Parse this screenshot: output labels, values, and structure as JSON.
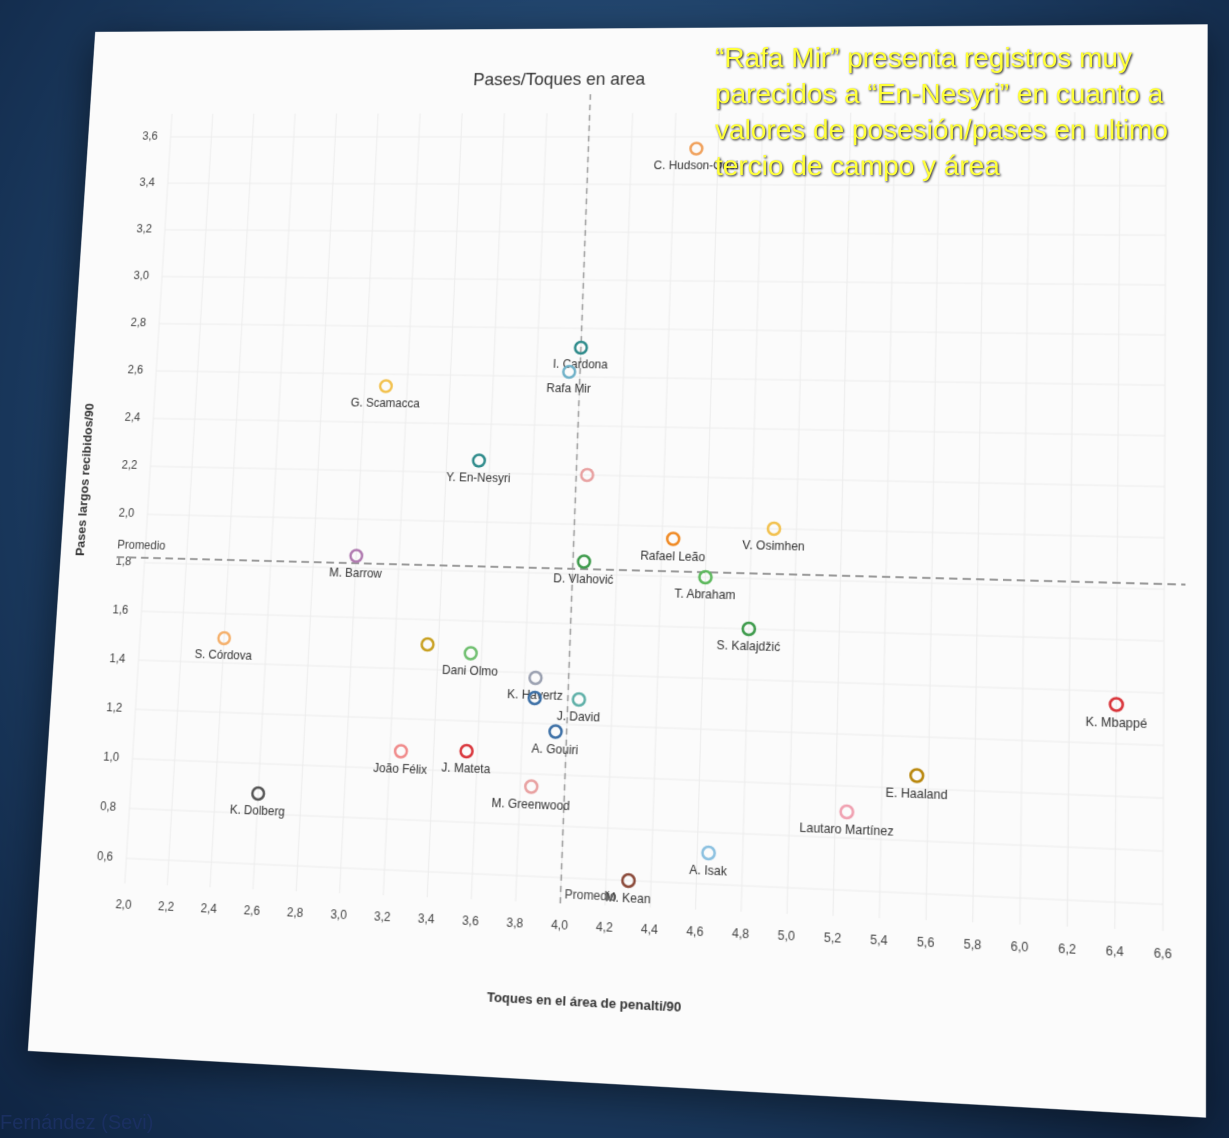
{
  "chart_data": {
    "type": "scatter",
    "title": "Pases/Toques en area",
    "x_label": "Toques en el área de penalti/90",
    "y_label": "Pases largos recibidos/90",
    "annotation": "“Rafa Mir” presenta registros muy parecidos a “En-Nesyri” en cuanto a valores de posesión/pases en ultimo tercio de campo  y área",
    "footer": "Fernández (Sevi)",
    "average_label": "Promedio",
    "x_average": 4.0,
    "y_average": 1.82,
    "labels": [
      "C. Hudson-Odoi",
      "I. Cardona",
      "Rafa Mir",
      "G. Scamacca",
      "Y. En-Nesyri",
      null,
      "Rafael Leão",
      "V. Osimhen",
      "M. Barrow",
      "D. Vlahović",
      "T. Abraham",
      "S. Kalajdžić",
      "S. Córdova",
      null,
      "Dani Olmo",
      "K. Havertz",
      null,
      "J. David",
      "A. Gouiri",
      "João Félix",
      "J. Mateta",
      "M. Greenwood",
      "K. Dolberg",
      "M. Kean",
      "A. Isak",
      "Lautaro Martínez",
      "E. Haaland",
      "K. Mbappé"
    ],
    "x": [
      4.5,
      4.0,
      3.95,
      3.1,
      3.55,
      4.05,
      4.45,
      4.9,
      3.0,
      4.05,
      4.6,
      4.8,
      2.4,
      3.35,
      3.55,
      3.85,
      3.85,
      4.05,
      3.95,
      3.25,
      3.55,
      3.85,
      2.6,
      4.3,
      4.65,
      5.25,
      5.55,
      6.4
    ],
    "values": [
      3.55,
      2.72,
      2.62,
      2.55,
      2.25,
      2.2,
      1.95,
      2.0,
      1.85,
      1.85,
      1.8,
      1.6,
      1.5,
      1.5,
      1.47,
      1.38,
      1.3,
      1.3,
      1.17,
      1.07,
      1.08,
      0.95,
      0.88,
      0.6,
      0.72,
      0.9,
      1.05,
      1.35
    ],
    "colors": [
      "#f0a05a",
      "#2e8b8b",
      "#6fb1c8",
      "#f2c14e",
      "#2e8b8b",
      "#e8a0a0",
      "#f08a24",
      "#f2c14e",
      "#b07ab0",
      "#3c9a4a",
      "#5cb85c",
      "#3c9a4a",
      "#f5b06b",
      "#c8a020",
      "#6fbf6f",
      "#9aa0b0",
      "#3a6ea5",
      "#5fb0a8",
      "#3a6ea5",
      "#f08a8a",
      "#d9343a",
      "#e8a0a0",
      "#555555",
      "#8b4a3a",
      "#8ac0e0",
      "#f0a0b0",
      "#b8860b",
      "#d9343a"
    ],
    "xlim": [
      2.0,
      6.6
    ],
    "ylim": [
      0.5,
      3.7
    ],
    "xticks": [
      {
        "value": 2.0,
        "label": "2,0"
      },
      {
        "value": 2.2,
        "label": "2,2"
      },
      {
        "value": 2.4,
        "label": "2,4"
      },
      {
        "value": 2.6,
        "label": "2,6"
      },
      {
        "value": 2.8,
        "label": "2,8"
      },
      {
        "value": 3.0,
        "label": "3,0"
      },
      {
        "value": 3.2,
        "label": "3,2"
      },
      {
        "value": 3.4,
        "label": "3,4"
      },
      {
        "value": 3.6,
        "label": "3,6"
      },
      {
        "value": 3.8,
        "label": "3,8"
      },
      {
        "value": 4.0,
        "label": "4,0"
      },
      {
        "value": 4.2,
        "label": "4,2"
      },
      {
        "value": 4.4,
        "label": "4,4"
      },
      {
        "value": 4.6,
        "label": "4,6"
      },
      {
        "value": 4.8,
        "label": "4,8"
      },
      {
        "value": 5.0,
        "label": "5,0"
      },
      {
        "value": 5.2,
        "label": "5,2"
      },
      {
        "value": 5.4,
        "label": "5,4"
      },
      {
        "value": 5.6,
        "label": "5,6"
      },
      {
        "value": 5.8,
        "label": "5,8"
      },
      {
        "value": 6.0,
        "label": "6,0"
      },
      {
        "value": 6.2,
        "label": "6,2"
      },
      {
        "value": 6.4,
        "label": "6,4"
      },
      {
        "value": 6.6,
        "label": "6,6"
      }
    ],
    "yticks": [
      {
        "value": 0.6,
        "label": "0,6"
      },
      {
        "value": 0.8,
        "label": "0,8"
      },
      {
        "value": 1.0,
        "label": "1,0"
      },
      {
        "value": 1.2,
        "label": "1,2"
      },
      {
        "value": 1.4,
        "label": "1,4"
      },
      {
        "value": 1.6,
        "label": "1,6"
      },
      {
        "value": 1.8,
        "label": "1,8"
      },
      {
        "value": 2.0,
        "label": "2,0"
      },
      {
        "value": 2.2,
        "label": "2,2"
      },
      {
        "value": 2.4,
        "label": "2,4"
      },
      {
        "value": 2.6,
        "label": "2,6"
      },
      {
        "value": 2.8,
        "label": "2,8"
      },
      {
        "value": 3.0,
        "label": "3,0"
      },
      {
        "value": 3.2,
        "label": "3,2"
      },
      {
        "value": 3.4,
        "label": "3,4"
      },
      {
        "value": 3.6,
        "label": "3,6"
      }
    ],
    "grid": true
  }
}
